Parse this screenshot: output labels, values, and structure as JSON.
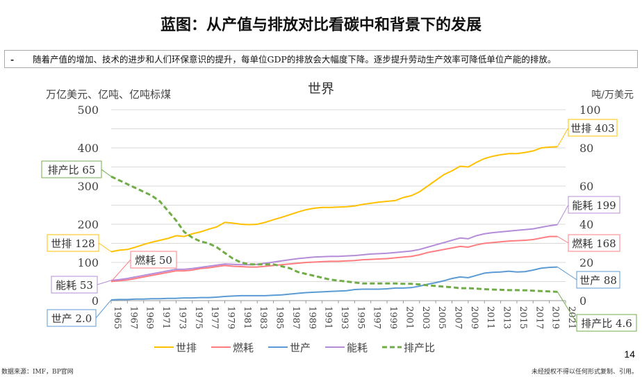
{
  "title": "蓝图：从产值与排放对比看碳中和背景下的发展",
  "bullet": {
    "marker": "-",
    "text": "随着产值的增加、技术的进步和人们环保意识的提升，每单位GDP的排放会大幅度下降。逐步提升劳动生产效率可降低单位产能的排放。"
  },
  "page_number": "14",
  "source": "数据来源：IMF，BP官网",
  "copyright": "未经授权不得以任何形式复制、引用。",
  "chart_data": {
    "type": "line",
    "title": "世界",
    "ylabel_left": "万亿美元、亿吨、亿吨标煤",
    "ylabel_right": "吨/万美元",
    "ylim_left": [
      0,
      500
    ],
    "yticks_left": [
      0,
      100,
      200,
      300,
      400,
      500
    ],
    "ylim_right": [
      0,
      100
    ],
    "yticks_right": [
      0,
      20,
      40,
      60,
      80,
      100
    ],
    "xlim": [
      1965,
      2021
    ],
    "xticks": [
      1965,
      1967,
      1969,
      1971,
      1973,
      1975,
      1977,
      1979,
      1981,
      1983,
      1985,
      1987,
      1989,
      1991,
      1993,
      1995,
      1997,
      1999,
      2001,
      2003,
      2005,
      2007,
      2009,
      2011,
      2013,
      2015,
      2017,
      2019,
      2021
    ],
    "grid": true,
    "legend": "bottom",
    "x_start": 1965,
    "series": [
      {
        "name": "世排",
        "axis": "left",
        "color": "#FFC000",
        "dash": false,
        "values": [
          128,
          132,
          134,
          140,
          147,
          153,
          158,
          163,
          170,
          168,
          175,
          180,
          187,
          193,
          205,
          203,
          200,
          199,
          200,
          205,
          212,
          218,
          225,
          232,
          238,
          242,
          244,
          244,
          245,
          246,
          248,
          252,
          255,
          258,
          260,
          262,
          270,
          275,
          285,
          300,
          315,
          330,
          340,
          352,
          350,
          362,
          372,
          378,
          382,
          385,
          385,
          388,
          392,
          400,
          402,
          403
        ],
        "labels": [
          "世排 128",
          "世排 403"
        ]
      },
      {
        "name": "燃耗",
        "axis": "left",
        "color": "#FF7C80",
        "dash": false,
        "values": [
          50,
          52,
          54,
          58,
          62,
          66,
          70,
          74,
          78,
          78,
          80,
          84,
          86,
          89,
          92,
          90,
          89,
          88,
          88,
          90,
          92,
          94,
          96,
          98,
          100,
          101,
          102,
          103,
          103,
          104,
          105,
          107,
          108,
          109,
          110,
          112,
          114,
          116,
          120,
          126,
          130,
          134,
          138,
          142,
          140,
          146,
          150,
          152,
          154,
          156,
          157,
          158,
          160,
          164,
          168,
          168
        ],
        "labels": [
          "燃耗 50",
          "燃耗 168"
        ]
      },
      {
        "name": "世产",
        "axis": "left",
        "color": "#5B9BD5",
        "dash": false,
        "values": [
          2,
          3,
          3,
          4,
          4,
          5,
          5,
          6,
          6,
          7,
          7,
          8,
          8,
          9,
          11,
          12,
          13,
          13,
          13,
          13,
          14,
          15,
          17,
          19,
          21,
          22,
          23,
          24,
          25,
          26,
          29,
          30,
          30,
          30,
          31,
          33,
          33,
          34,
          38,
          43,
          47,
          52,
          58,
          62,
          60,
          66,
          72,
          74,
          75,
          77,
          75,
          76,
          80,
          85,
          87,
          88
        ],
        "labels": [
          "世产 2.0",
          "世产 88"
        ]
      },
      {
        "name": "能耗",
        "axis": "left",
        "color": "#B48CD8",
        "dash": false,
        "values": [
          53,
          55,
          58,
          62,
          66,
          70,
          74,
          78,
          82,
          82,
          84,
          87,
          90,
          93,
          96,
          95,
          94,
          94,
          95,
          98,
          101,
          104,
          107,
          110,
          112,
          114,
          115,
          116,
          116,
          117,
          118,
          120,
          122,
          123,
          124,
          126,
          128,
          130,
          134,
          140,
          146,
          152,
          158,
          164,
          162,
          170,
          175,
          178,
          180,
          182,
          184,
          186,
          188,
          192,
          196,
          199
        ],
        "labels": [
          "能耗 53",
          "能耗 199"
        ]
      },
      {
        "name": "排产比",
        "axis": "right",
        "color": "#70AD47",
        "dash": true,
        "values": [
          65,
          63,
          61,
          59,
          57,
          55,
          52,
          47,
          42,
          36,
          33,
          31,
          30,
          28,
          25,
          22,
          20,
          19,
          19,
          19,
          19,
          18,
          17,
          15,
          14,
          13,
          12,
          11,
          10.5,
          10,
          9.5,
          9,
          9,
          9,
          9,
          9,
          8.8,
          8.8,
          8.5,
          8,
          7.7,
          7.3,
          7,
          6.5,
          6.5,
          6.3,
          6,
          5.8,
          5.7,
          5.5,
          5.5,
          5.4,
          5.2,
          5,
          4.8,
          4.6
        ],
        "labels": [
          "排产比 65",
          "排产比 4.6"
        ]
      }
    ]
  }
}
